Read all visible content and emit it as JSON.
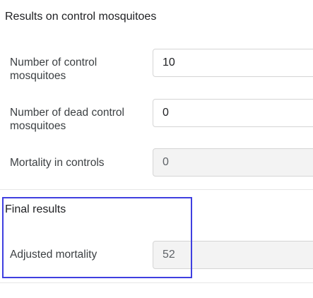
{
  "control_section": {
    "title": "Results on control mosquitoes",
    "rows": [
      {
        "label": "Number of control mosquitoes",
        "value": "10"
      },
      {
        "label": "Number of dead control mosquitoes",
        "value": "0"
      },
      {
        "label": "Mortality in controls",
        "value": "0"
      }
    ]
  },
  "final_section": {
    "title": "Final results",
    "rows": [
      {
        "label": "Adjusted mortality",
        "value": "52"
      }
    ]
  },
  "highlight": {
    "color": "#3f3fe0"
  }
}
